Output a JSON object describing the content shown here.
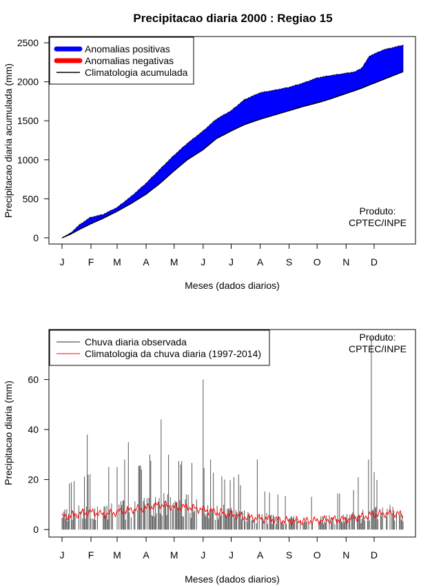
{
  "title": "Precipitacao diaria 2000 : Regiao 15",
  "months": [
    "J",
    "F",
    "M",
    "A",
    "M",
    "J",
    "J",
    "A",
    "S",
    "O",
    "N",
    "D"
  ],
  "credit_line1": "Produto:",
  "credit_line2": "CPTEC/INPE",
  "colors": {
    "positive": "#0000ff",
    "negative": "#ff0000",
    "climatology": "#000000",
    "observed": "#555555",
    "clim_daily": "#ff0000"
  },
  "chart_data": [
    {
      "type": "area",
      "ylabel": "Precipitacao diaria acumulada (mm)",
      "xlabel": "Meses (dados diarios)",
      "ylim": [
        -80,
        2580
      ],
      "yticks": [
        0,
        500,
        1000,
        1500,
        2000,
        2500
      ],
      "legend": {
        "position": "top-left",
        "entries": [
          "Anomalias positivas",
          "Anomalias negativas",
          "Climatologia acumulada"
        ]
      },
      "days": [
        1,
        10,
        20,
        31,
        45,
        60,
        75,
        91,
        105,
        121,
        135,
        152,
        166,
        182,
        196,
        213,
        227,
        244,
        258,
        274,
        288,
        305,
        315,
        322,
        330,
        345,
        366
      ],
      "observed_cumulative": [
        0,
        60,
        170,
        260,
        300,
        390,
        530,
        700,
        870,
        1060,
        1210,
        1370,
        1520,
        1630,
        1770,
        1860,
        1890,
        1930,
        1980,
        2050,
        2080,
        2110,
        2130,
        2180,
        2330,
        2410,
        2470
      ],
      "climatology_cumulative": [
        0,
        45,
        110,
        175,
        250,
        340,
        440,
        560,
        690,
        860,
        1000,
        1130,
        1270,
        1370,
        1450,
        1520,
        1570,
        1630,
        1680,
        1730,
        1780,
        1850,
        1890,
        1920,
        1960,
        2030,
        2130
      ]
    },
    {
      "type": "bar",
      "ylabel": "Precipitacao diaria (mm)",
      "xlabel": "Meses (dados diarios)",
      "ylim": [
        -3,
        80
      ],
      "yticks": [
        0,
        20,
        40,
        60
      ],
      "legend": {
        "position": "top-left",
        "entries": [
          "Chuva diaria observada",
          "Climatologia da chuva diaria (1997-2014)"
        ]
      },
      "peaks": [
        {
          "day": 28,
          "value": 38
        },
        {
          "day": 51,
          "value": 25
        },
        {
          "day": 60,
          "value": 25
        },
        {
          "day": 68,
          "value": 28
        },
        {
          "day": 72,
          "value": 35
        },
        {
          "day": 86,
          "value": 24
        },
        {
          "day": 95,
          "value": 30
        },
        {
          "day": 107,
          "value": 44
        },
        {
          "day": 115,
          "value": 30
        },
        {
          "day": 128,
          "value": 26
        },
        {
          "day": 152,
          "value": 60
        },
        {
          "day": 160,
          "value": 28
        },
        {
          "day": 175,
          "value": 20
        },
        {
          "day": 185,
          "value": 21
        },
        {
          "day": 190,
          "value": 22
        },
        {
          "day": 210,
          "value": 28
        },
        {
          "day": 318,
          "value": 21
        },
        {
          "day": 329,
          "value": 28
        },
        {
          "day": 332,
          "value": 77
        },
        {
          "day": 335,
          "value": 23
        }
      ],
      "climatology_daily": [
        {
          "day": 1,
          "value": 5
        },
        {
          "day": 15,
          "value": 6
        },
        {
          "day": 31,
          "value": 7
        },
        {
          "day": 45,
          "value": 6
        },
        {
          "day": 60,
          "value": 7
        },
        {
          "day": 75,
          "value": 8
        },
        {
          "day": 91,
          "value": 8.5
        },
        {
          "day": 105,
          "value": 10
        },
        {
          "day": 121,
          "value": 9
        },
        {
          "day": 135,
          "value": 9
        },
        {
          "day": 152,
          "value": 8
        },
        {
          "day": 166,
          "value": 7
        },
        {
          "day": 182,
          "value": 6
        },
        {
          "day": 196,
          "value": 5
        },
        {
          "day": 213,
          "value": 4.5
        },
        {
          "day": 227,
          "value": 4
        },
        {
          "day": 244,
          "value": 3.5
        },
        {
          "day": 258,
          "value": 3.5
        },
        {
          "day": 274,
          "value": 3.5
        },
        {
          "day": 288,
          "value": 4
        },
        {
          "day": 305,
          "value": 4
        },
        {
          "day": 320,
          "value": 5
        },
        {
          "day": 335,
          "value": 6
        },
        {
          "day": 350,
          "value": 6.5
        },
        {
          "day": 366,
          "value": 6
        }
      ]
    }
  ]
}
